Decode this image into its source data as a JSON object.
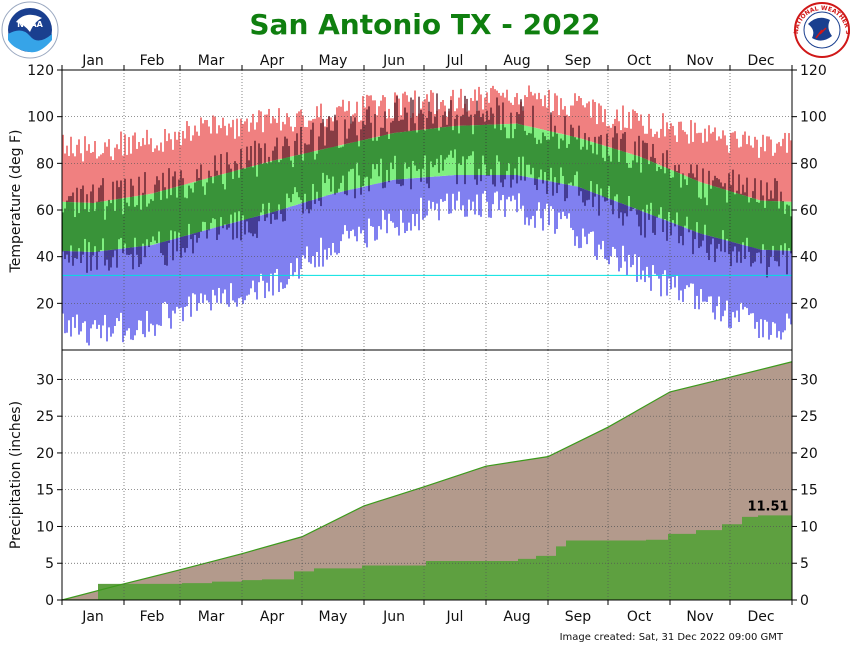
{
  "title": "San Antonio TX - 2022",
  "footer": "Image created: Sat, 31 Dec 2022 09:00 GMT",
  "logos": {
    "left": "NOAA",
    "right": "NATIONAL WEATHER SERVICE"
  },
  "colors": {
    "title": "#0f7f0f",
    "record_high": "#f08080",
    "normal_band": "#80f080",
    "record_low": "#8080f0",
    "actual_bar": "#5c1f2a",
    "actual_bar_in_normal": "#1b6b1b",
    "actual_bar_in_low": "#2a1f6e",
    "freezing_line": "#00e0e0",
    "normal_precip_fill": "#b39a8c",
    "actual_precip_fill": "#5ea040",
    "normal_precip_line": "#3c9a1c"
  },
  "chart_data": [
    {
      "type": "bar",
      "name": "temperature",
      "ylabel": "Temperature (deg F)",
      "ylim": [
        0,
        120
      ],
      "yticks": [
        20,
        40,
        60,
        80,
        100,
        120
      ],
      "months": [
        "Jan",
        "Feb",
        "Mar",
        "Apr",
        "May",
        "Jun",
        "Jul",
        "Aug",
        "Sep",
        "Oct",
        "Nov",
        "Dec"
      ],
      "freezing_line": 32,
      "record_high_by_month": [
        86,
        90,
        95,
        98,
        102,
        105,
        106,
        108,
        105,
        98,
        92,
        88
      ],
      "normal_high_by_month": [
        63,
        67,
        74,
        81,
        87,
        93,
        96,
        97,
        91,
        83,
        72,
        64
      ],
      "normal_low_by_month": [
        42,
        45,
        52,
        59,
        67,
        73,
        75,
        75,
        70,
        60,
        50,
        43
      ],
      "record_low_by_month": [
        8,
        12,
        20,
        30,
        45,
        55,
        63,
        62,
        50,
        35,
        20,
        10
      ],
      "actual_high_by_month": [
        64,
        68,
        74,
        84,
        93,
        100,
        102,
        99,
        92,
        84,
        70,
        67
      ],
      "actual_low_by_month": [
        40,
        42,
        50,
        58,
        70,
        76,
        78,
        76,
        70,
        57,
        48,
        38
      ],
      "grid": true
    },
    {
      "type": "area",
      "name": "precipitation",
      "ylabel": "Precipitation (inches)",
      "ylim": [
        0,
        34
      ],
      "yticks": [
        0,
        5,
        10,
        15,
        20,
        25,
        30
      ],
      "months": [
        "Jan",
        "Feb",
        "Mar",
        "Apr",
        "May",
        "Jun",
        "Jul",
        "Aug",
        "Sep",
        "Oct",
        "Nov",
        "Dec"
      ],
      "x_day": [
        0,
        31,
        59,
        90,
        120,
        151,
        181,
        212,
        243,
        273,
        304,
        334,
        365
      ],
      "normal_cumulative": [
        0,
        2.2,
        4.1,
        6.3,
        8.6,
        12.8,
        15.4,
        18.2,
        19.5,
        23.5,
        28.3,
        30.3,
        32.4
      ],
      "actual_steps": [
        [
          0,
          0.1
        ],
        [
          18,
          2.2
        ],
        [
          60,
          2.3
        ],
        [
          75,
          2.5
        ],
        [
          90,
          2.7
        ],
        [
          100,
          2.8
        ],
        [
          116,
          3.9
        ],
        [
          126,
          4.3
        ],
        [
          150,
          4.7
        ],
        [
          182,
          5.3
        ],
        [
          228,
          5.6
        ],
        [
          237,
          6.0
        ],
        [
          247,
          7.3
        ],
        [
          252,
          8.1
        ],
        [
          292,
          8.2
        ],
        [
          303,
          9.0
        ],
        [
          317,
          9.5
        ],
        [
          330,
          10.3
        ],
        [
          340,
          11.3
        ],
        [
          348,
          11.51
        ],
        [
          365,
          11.51
        ]
      ],
      "ytd_actual_label": "11.51",
      "grid": true
    }
  ]
}
